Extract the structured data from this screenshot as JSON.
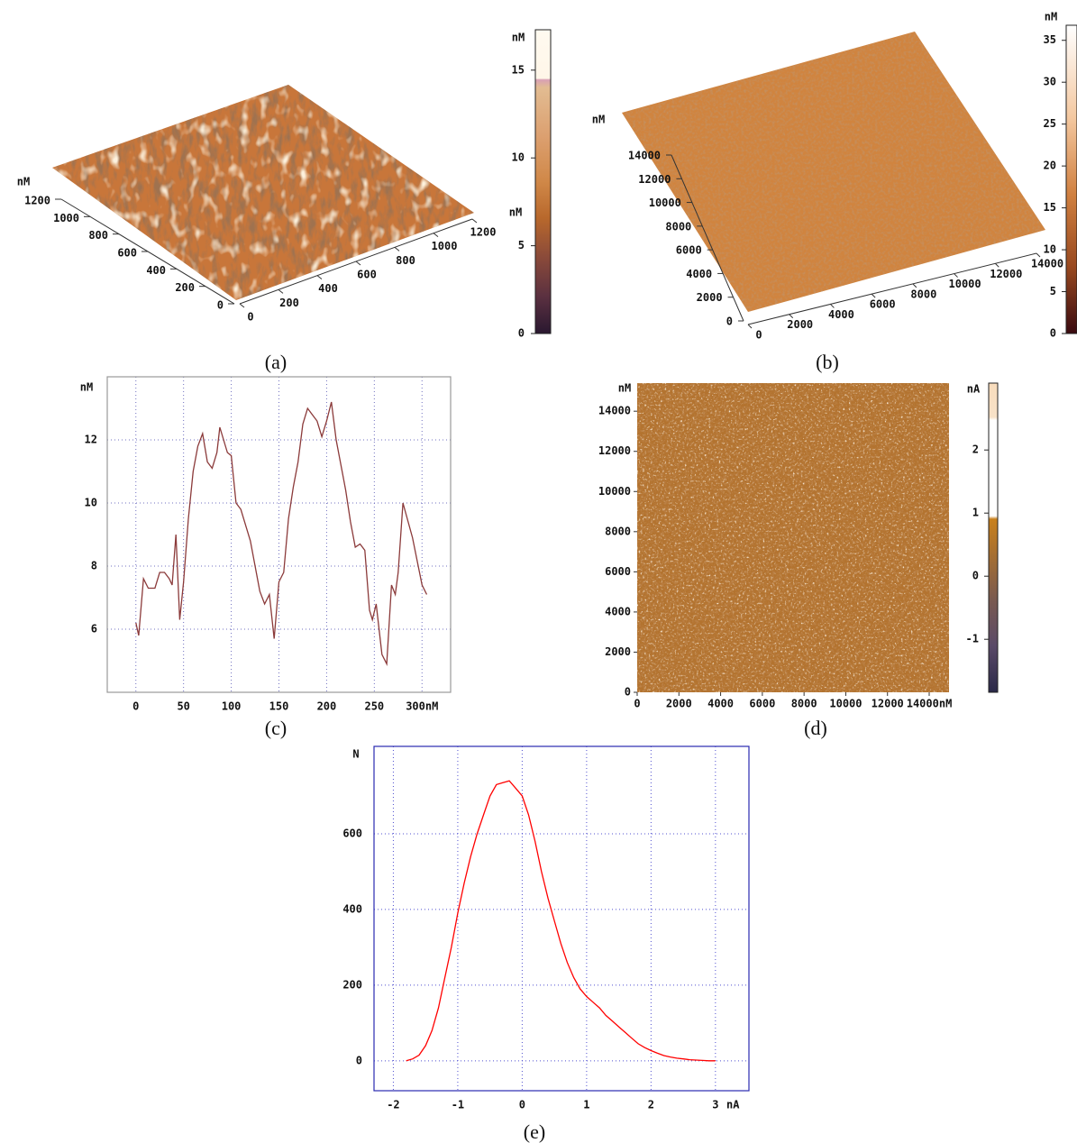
{
  "chart_data": [
    {
      "type": "surface3d",
      "caption": "(a)",
      "unit": "nM",
      "z_unit": "nM",
      "xlim": [
        0,
        1200
      ],
      "xticks": [
        0,
        200,
        400,
        600,
        800,
        1000,
        1200
      ],
      "ylim": [
        0,
        1200
      ],
      "yticks": [
        0,
        200,
        400,
        600,
        800,
        1000,
        1200
      ],
      "colorbar": {
        "unit": "nM",
        "lim": [
          0,
          17.3
        ],
        "ticks": [
          0,
          5,
          10,
          15
        ]
      }
    },
    {
      "type": "surface3d",
      "caption": "(b)",
      "unit": "nM",
      "xlim": [
        0,
        14000
      ],
      "xticks": [
        0,
        2000,
        4000,
        6000,
        8000,
        10000,
        12000,
        14000
      ],
      "ylim": [
        0,
        14000
      ],
      "yticks": [
        0,
        2000,
        4000,
        6000,
        8000,
        10000,
        12000,
        14000
      ],
      "colorbar": {
        "unit": "nM",
        "lim": [
          0,
          36.8
        ],
        "ticks": [
          0,
          5,
          10,
          15,
          20,
          25,
          30,
          35
        ]
      }
    },
    {
      "type": "line",
      "caption": "(c)",
      "y_unit": "nM",
      "color": "#8b3a3a",
      "grid": true,
      "x": [
        0,
        3,
        8,
        13,
        20,
        25,
        30,
        35,
        38,
        42,
        46,
        50,
        55,
        60,
        65,
        70,
        75,
        80,
        85,
        88,
        92,
        96,
        100,
        105,
        110,
        120,
        130,
        135,
        140,
        145,
        150,
        155,
        160,
        165,
        170,
        175,
        180,
        185,
        190,
        195,
        200,
        205,
        210,
        215,
        220,
        225,
        230,
        235,
        240,
        245,
        248,
        252,
        258,
        263,
        268,
        272,
        275,
        280,
        290,
        300,
        305
      ],
      "values": [
        6.2,
        5.8,
        7.6,
        7.3,
        7.3,
        7.8,
        7.8,
        7.6,
        7.4,
        9.0,
        6.3,
        7.5,
        9.5,
        11.0,
        11.8,
        12.2,
        11.3,
        11.1,
        11.6,
        12.4,
        12.0,
        11.6,
        11.5,
        10.0,
        9.8,
        8.8,
        7.2,
        6.8,
        7.1,
        5.7,
        7.5,
        7.8,
        9.5,
        10.5,
        11.3,
        12.5,
        13.0,
        12.8,
        12.6,
        12.1,
        12.6,
        13.2,
        12.0,
        11.2,
        10.4,
        9.4,
        8.6,
        8.7,
        8.5,
        6.6,
        6.3,
        6.8,
        5.2,
        4.9,
        7.4,
        7.1,
        7.8,
        10.0,
        8.9,
        7.4,
        7.1
      ],
      "xlim": [
        -30,
        330
      ],
      "xticks": [
        0,
        50,
        100,
        150,
        200,
        250,
        {
          "value": 300,
          "label": "300nM"
        }
      ],
      "ylim": [
        4,
        14
      ],
      "yticks": [
        6,
        8,
        10,
        12
      ]
    },
    {
      "type": "heatmap",
      "caption": "(d)",
      "y_unit": "nM",
      "xlim": [
        0,
        14950
      ],
      "xticks": [
        0,
        2000,
        4000,
        6000,
        8000,
        10000,
        12000,
        {
          "value": 14000,
          "label": "14000nM"
        }
      ],
      "ylim": [
        0,
        15400
      ],
      "yticks": [
        0,
        2000,
        4000,
        6000,
        8000,
        10000,
        12000,
        14000
      ],
      "colorbar": {
        "unit": "nA",
        "lim": [
          -1.84,
          3.06
        ],
        "ticks": [
          -1,
          0,
          1,
          2
        ]
      }
    },
    {
      "type": "line",
      "caption": "(e)",
      "y_unit": "N",
      "x_unit": "nA",
      "color": "#ff0000",
      "grid": true,
      "x": [
        -1.8,
        -1.7,
        -1.6,
        -1.5,
        -1.4,
        -1.3,
        -1.2,
        -1.1,
        -1.0,
        -0.9,
        -0.8,
        -0.7,
        -0.6,
        -0.5,
        -0.4,
        -0.3,
        -0.2,
        -0.1,
        0,
        0.1,
        0.2,
        0.3,
        0.4,
        0.5,
        0.6,
        0.7,
        0.8,
        0.9,
        1.0,
        1.1,
        1.2,
        1.3,
        1.4,
        1.5,
        1.6,
        1.7,
        1.8,
        1.9,
        2.0,
        2.1,
        2.2,
        2.3,
        2.4,
        2.5,
        2.6,
        2.7,
        2.8,
        2.9,
        3.0
      ],
      "values": [
        0,
        5,
        15,
        40,
        80,
        140,
        220,
        300,
        390,
        470,
        540,
        600,
        650,
        700,
        730,
        735,
        740,
        720,
        700,
        650,
        580,
        500,
        430,
        370,
        310,
        260,
        220,
        190,
        170,
        155,
        140,
        120,
        105,
        90,
        75,
        60,
        45,
        35,
        27,
        20,
        14,
        10,
        7,
        5,
        3,
        2,
        1,
        0,
        0
      ],
      "xlim": [
        -2.3,
        3.52
      ],
      "xticks": [
        -2,
        -1,
        0,
        1,
        2,
        3
      ],
      "ylim": [
        -79,
        831
      ],
      "yticks": [
        0,
        200,
        400,
        600
      ]
    }
  ]
}
